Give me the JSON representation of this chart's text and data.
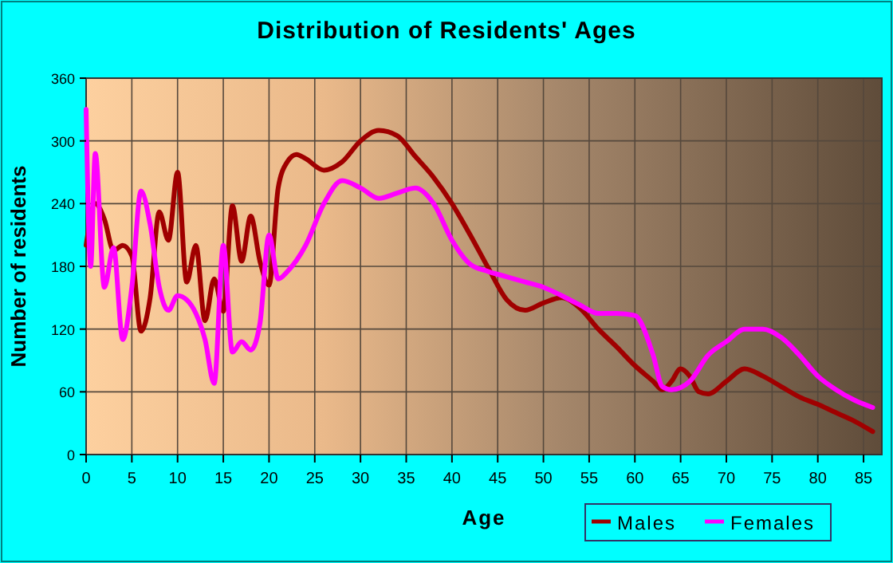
{
  "chart_data": {
    "type": "line",
    "title": "Distribution of Residents' Ages",
    "xlabel": "Age",
    "ylabel": "Number of residents",
    "xlim": [
      0,
      87
    ],
    "xticks": [
      0,
      5,
      10,
      15,
      20,
      25,
      30,
      35,
      40,
      45,
      50,
      55,
      60,
      65,
      70,
      75,
      80,
      85
    ],
    "ylim": [
      0,
      360
    ],
    "yticks": [
      0,
      60,
      120,
      180,
      240,
      300,
      360
    ],
    "grid": true,
    "legend": "bottom right",
    "line_style": "solid",
    "series": [
      {
        "name": "Males",
        "color": "#a00000",
        "x": [
          0,
          1,
          2,
          3,
          4,
          5,
          6,
          7,
          8,
          9,
          10,
          11,
          12,
          13,
          14,
          15,
          16,
          17,
          18,
          19,
          20,
          21,
          22,
          23,
          24,
          26,
          28,
          30,
          32,
          34,
          36,
          38,
          40,
          42,
          44,
          46,
          48,
          50,
          52,
          54,
          56,
          58,
          60,
          62,
          63,
          64,
          65,
          66,
          67,
          68,
          70,
          72,
          74,
          76,
          78,
          80,
          82,
          84,
          86
        ],
        "values": [
          200,
          240,
          225,
          195,
          200,
          190,
          118,
          150,
          232,
          205,
          270,
          165,
          200,
          128,
          168,
          137,
          238,
          185,
          228,
          185,
          162,
          255,
          280,
          287,
          283,
          272,
          280,
          300,
          310,
          305,
          285,
          265,
          240,
          210,
          178,
          148,
          138,
          145,
          150,
          140,
          120,
          103,
          85,
          70,
          62,
          70,
          82,
          75,
          60,
          58,
          70,
          82,
          75,
          65,
          55,
          48,
          40,
          32,
          22
        ]
      },
      {
        "name": "Females",
        "color": "#ff00ff",
        "x": [
          0,
          0.5,
          1,
          2,
          3,
          4,
          5,
          6,
          7,
          8,
          9,
          10,
          11,
          12,
          13,
          14,
          15,
          16,
          17,
          18,
          19,
          20,
          21,
          22,
          24,
          26,
          28,
          30,
          32,
          34,
          36,
          38,
          40,
          42,
          44,
          46,
          48,
          50,
          52,
          54,
          56,
          58,
          60,
          62,
          63,
          64,
          66,
          68,
          70,
          72,
          74,
          76,
          78,
          80,
          82,
          84,
          86
        ],
        "values": [
          330,
          180,
          288,
          160,
          198,
          110,
          160,
          252,
          220,
          160,
          138,
          152,
          148,
          135,
          110,
          68,
          200,
          98,
          108,
          100,
          125,
          210,
          168,
          175,
          200,
          240,
          262,
          255,
          245,
          250,
          255,
          240,
          205,
          182,
          175,
          170,
          165,
          160,
          152,
          143,
          135,
          135,
          133,
          95,
          65,
          62,
          70,
          95,
          108,
          120,
          120,
          112,
          95,
          75,
          62,
          52,
          45
        ]
      }
    ]
  }
}
